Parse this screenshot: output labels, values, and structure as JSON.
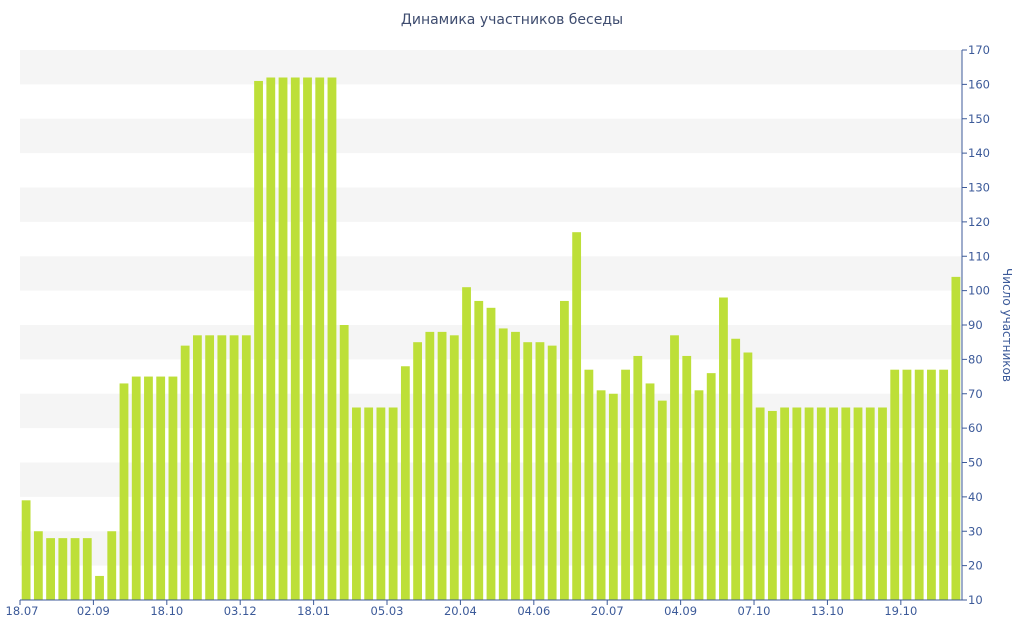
{
  "chart_data": {
    "type": "bar",
    "title": "Динамика участников беседы",
    "xlabel": "",
    "ylabel": "Число участников",
    "ylim": [
      10,
      170
    ],
    "yticks": [
      10,
      20,
      30,
      40,
      50,
      60,
      70,
      80,
      90,
      100,
      110,
      120,
      130,
      140,
      150,
      160,
      170
    ],
    "y_axis_side": "right",
    "grid": "alternating horizontal bands",
    "x_tick_labels": [
      "18.07",
      "02.09",
      "18.10",
      "03.12",
      "18.01",
      "05.03",
      "20.04",
      "04.06",
      "20.07",
      "04.09",
      "07.10",
      "13.10",
      "19.10"
    ],
    "x_tick_label_bar_index": [
      0,
      6,
      12,
      18,
      24,
      30,
      36,
      42,
      48,
      54,
      60,
      66,
      72
    ],
    "series": [
      {
        "values": [
          39,
          30,
          28,
          28,
          28,
          28,
          17,
          30,
          73,
          75,
          75,
          75,
          75,
          84,
          87,
          87,
          87,
          87,
          87,
          161,
          162,
          162,
          162,
          162,
          162,
          162,
          90,
          66,
          66,
          66,
          66,
          78,
          85,
          88,
          88,
          87,
          101,
          97,
          95,
          89,
          88,
          85,
          85,
          84,
          97,
          117,
          77,
          71,
          70,
          77,
          81,
          73,
          68,
          87,
          81,
          71,
          76,
          98,
          86,
          82,
          66,
          65,
          66,
          66,
          66,
          66,
          66,
          66,
          66,
          66,
          66,
          77,
          77,
          77,
          77,
          77,
          104
        ]
      }
    ],
    "colors": {
      "bar": "#bddf38",
      "band": "#f5f5f5",
      "axis": "#3c5a99",
      "title": "#3e4c6f"
    }
  }
}
